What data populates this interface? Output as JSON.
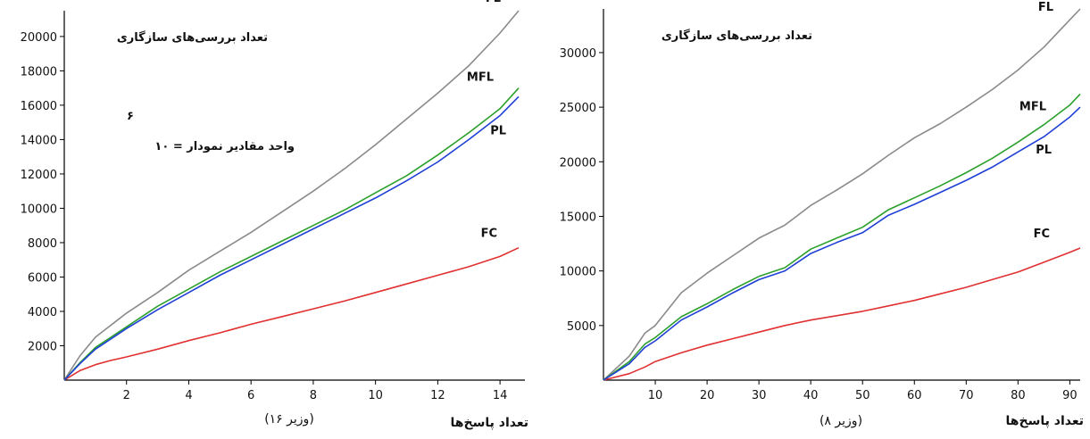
{
  "chart_data": [
    {
      "type": "line",
      "title": "",
      "ylabel": "تعداد بررسی‌های سازگاری",
      "xlabel": "تعداد پاسخ‌ها",
      "xlabel_sub": "(۱۶ وزیر)",
      "annotation": "واحد مقادیر نمودار = ۱۰",
      "annotation_sup": "۶",
      "xlim": [
        0,
        14.8
      ],
      "ylim": [
        0,
        21500
      ],
      "xticks": [
        2,
        4,
        6,
        8,
        10,
        12,
        14
      ],
      "yticks": [
        2000,
        4000,
        6000,
        8000,
        10000,
        12000,
        14000,
        16000,
        18000,
        20000
      ],
      "ytick_labels": [
        "2000",
        "4000",
        "6000",
        "8000",
        "10000",
        "12000",
        "14000",
        "16000",
        "18000",
        "20000"
      ],
      "grid": false,
      "x": [
        0,
        0.5,
        1,
        1.5,
        2,
        3,
        4,
        5,
        6,
        7,
        8,
        9,
        10,
        11,
        12,
        13,
        14,
        14.6
      ],
      "series": [
        {
          "name": "FL",
          "color": "#8a8a8a",
          "values": [
            0,
            1400,
            2500,
            3200,
            3900,
            5100,
            6400,
            7500,
            8600,
            9800,
            11000,
            12300,
            13700,
            15200,
            16700,
            18300,
            20200,
            21500
          ]
        },
        {
          "name": "MFL",
          "color": "#2ca02c",
          "values": [
            0,
            1000,
            1900,
            2500,
            3100,
            4300,
            5300,
            6300,
            7200,
            8100,
            9000,
            9900,
            10900,
            11900,
            13100,
            14400,
            15800,
            17000
          ]
        },
        {
          "name": "PL",
          "color": "#1f3fd6",
          "values": [
            0,
            950,
            1800,
            2400,
            3000,
            4100,
            5100,
            6100,
            7000,
            7900,
            8800,
            9700,
            10600,
            11600,
            12700,
            14000,
            15400,
            16500
          ]
        },
        {
          "name": "FC",
          "color": "#e03030",
          "values": [
            0,
            550,
            900,
            1150,
            1350,
            1800,
            2300,
            2750,
            3250,
            3700,
            4150,
            4600,
            5100,
            5600,
            6100,
            6600,
            7200,
            7700
          ]
        }
      ]
    },
    {
      "type": "line",
      "title": "",
      "ylabel": "تعداد بررسی‌های سازگاری",
      "xlabel": "تعداد پاسخ‌ها",
      "xlabel_sub": "(۸ وزیر)",
      "xlim": [
        0,
        92
      ],
      "ylim": [
        0,
        34000
      ],
      "xticks": [
        10,
        20,
        30,
        40,
        50,
        60,
        70,
        80,
        90
      ],
      "xtick_labels": [
        "10",
        "20",
        "30",
        "40",
        "50",
        "60",
        "70",
        "80",
        "90"
      ],
      "yticks": [
        5000,
        10000,
        15000,
        20000,
        25000,
        30000
      ],
      "ytick_labels": [
        "5000",
        "10000",
        "15000",
        "20000",
        "25000",
        "30000"
      ],
      "grid": false,
      "x": [
        0,
        5,
        8,
        10,
        15,
        20,
        25,
        30,
        35,
        40,
        45,
        50,
        55,
        60,
        65,
        70,
        75,
        80,
        85,
        90,
        92
      ],
      "series": [
        {
          "name": "FL",
          "color": "#8a8a8a",
          "values": [
            0,
            2200,
            4300,
            5000,
            8000,
            9800,
            11400,
            13000,
            14200,
            16000,
            17400,
            18900,
            20600,
            22200,
            23500,
            25000,
            26600,
            28400,
            30500,
            33000,
            34000
          ]
        },
        {
          "name": "MFL",
          "color": "#2ca02c",
          "values": [
            0,
            1700,
            3300,
            3900,
            5800,
            7000,
            8300,
            9500,
            10300,
            12000,
            13000,
            14000,
            15600,
            16700,
            17800,
            19000,
            20300,
            21800,
            23400,
            25200,
            26200
          ]
        },
        {
          "name": "PL",
          "color": "#1f3fd6",
          "values": [
            0,
            1500,
            3000,
            3600,
            5500,
            6700,
            8000,
            9200,
            10000,
            11600,
            12600,
            13500,
            15100,
            16100,
            17200,
            18300,
            19500,
            20900,
            22300,
            24100,
            25000
          ]
        },
        {
          "name": "FC",
          "color": "#e03030",
          "values": [
            0,
            600,
            1200,
            1700,
            2500,
            3200,
            3800,
            4400,
            5000,
            5500,
            5900,
            6300,
            6800,
            7300,
            7900,
            8500,
            9200,
            9900,
            10800,
            11700,
            12100
          ]
        }
      ]
    }
  ]
}
